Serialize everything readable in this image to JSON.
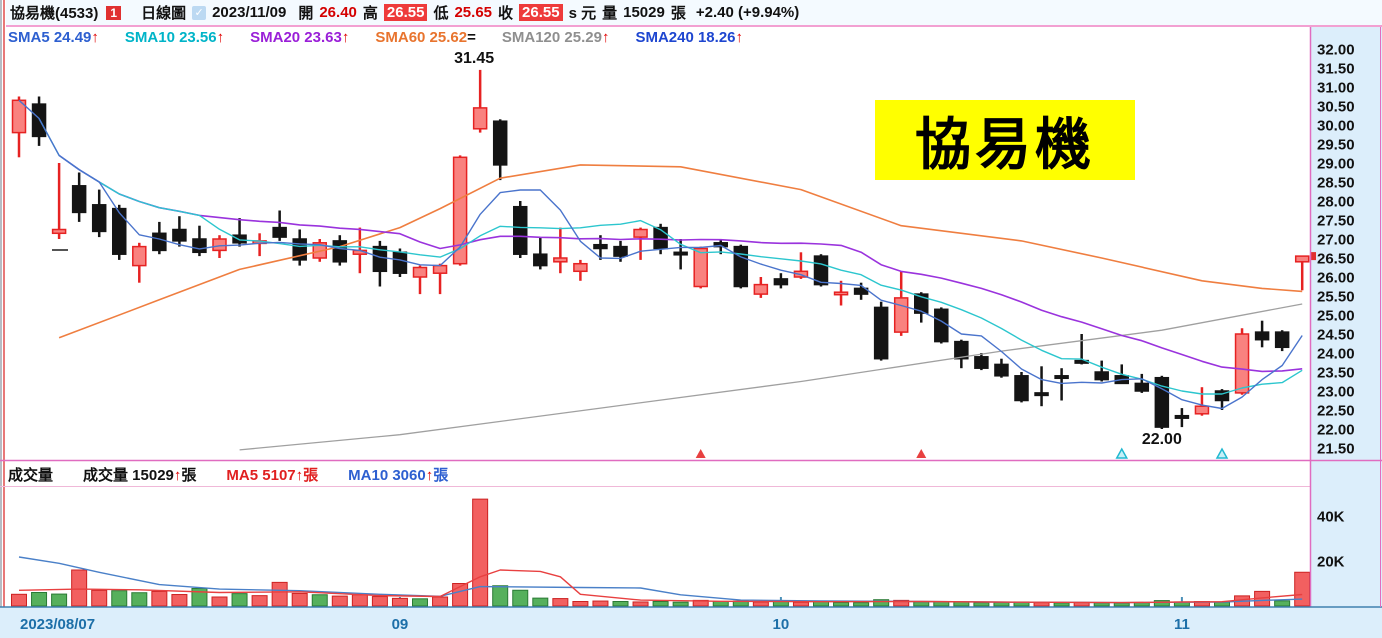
{
  "header": {
    "stock_name": "協易機(4533)",
    "badge": "1",
    "chart_type": "日線圖",
    "date": "2023/11/09",
    "open_label": "開",
    "open": "26.40",
    "high_label": "高",
    "high": "26.55",
    "low_label": "低",
    "low": "25.65",
    "close_label": "收",
    "close": "26.55",
    "unit": "s 元",
    "volume_label": "量",
    "volume": "15029",
    "volume_unit": "張",
    "change": "+2.40 (+9.94%)"
  },
  "sma_legend": [
    {
      "name": "SMA5",
      "value": "24.49",
      "dir": "↑",
      "color": "#2d5fd0",
      "dirColor": "#e00000"
    },
    {
      "name": "SMA10",
      "value": "23.56",
      "dir": "↑",
      "color": "#00b4c8",
      "dirColor": "#e00000"
    },
    {
      "name": "SMA20",
      "value": "23.63",
      "dir": "↑",
      "color": "#9a1fd8",
      "dirColor": "#e00000"
    },
    {
      "name": "SMA60",
      "value": "25.62",
      "dir": "=",
      "color": "#e8742e",
      "dirColor": "#111111"
    },
    {
      "name": "SMA120",
      "value": "25.29",
      "dir": "↑",
      "color": "#8f8f8f",
      "dirColor": "#e00000"
    },
    {
      "name": "SMA240",
      "value": "18.26",
      "dir": "↑",
      "color": "#1e46d0",
      "dirColor": "#e00000"
    }
  ],
  "volume_legend": {
    "pane_title": "成交量",
    "items": [
      {
        "pre": "成交量 15029",
        "dir": "↑",
        "post": "張",
        "color": "#111111",
        "dirColor": "#e00000"
      },
      {
        "pre": "MA5 5107",
        "dir": "↑",
        "post": "張",
        "color": "#e02020",
        "dirColor": "#e00000"
      },
      {
        "pre": "MA10 3060",
        "dir": "↑",
        "post": "張",
        "color": "#2d5fd0",
        "dirColor": "#e00000"
      }
    ]
  },
  "watermark": "協易機",
  "annotations": {
    "high_label": "31.45",
    "low_label": "22.00"
  },
  "chart_data": {
    "type": "candlestick+volume",
    "title": "協易機(4533) 日線圖",
    "price_axis_ticks": [
      "32.00",
      "31.50",
      "31.00",
      "30.50",
      "30.00",
      "29.50",
      "29.00",
      "28.50",
      "28.00",
      "27.50",
      "27.00",
      "26.50",
      "26.00",
      "25.50",
      "25.00",
      "24.50",
      "24.00",
      "23.50",
      "23.00",
      "22.50",
      "22.00",
      "21.50"
    ],
    "price_axis_range": {
      "min": 21.5,
      "max": 32.0,
      "step": 0.5
    },
    "volume_axis_ticks": [
      {
        "label": "40K",
        "value": 40
      },
      {
        "label": "20K",
        "value": 20
      }
    ],
    "x_axis": {
      "labels": [
        "2023/08/07",
        "09",
        "10",
        "11"
      ],
      "tick_indices": [
        1,
        19,
        38,
        58
      ]
    },
    "last_price_marker": 26.55,
    "grid": false,
    "candles_format": [
      "date",
      "open",
      "high",
      "low",
      "close",
      "volume_K",
      "volume_color"
    ],
    "candles": [
      [
        "08/07",
        29.8,
        30.75,
        29.15,
        30.65,
        5.2,
        "r"
      ],
      [
        "08/08",
        30.55,
        30.75,
        29.45,
        29.7,
        6.0,
        "g"
      ],
      [
        "08/09",
        27.15,
        29.0,
        27.0,
        27.25,
        5.3,
        "g"
      ],
      [
        "08/10",
        28.4,
        28.75,
        27.45,
        27.7,
        16.0,
        "r"
      ],
      [
        "08/11",
        27.9,
        28.3,
        27.05,
        27.2,
        7.0,
        "r"
      ],
      [
        "08/14",
        27.8,
        27.9,
        26.45,
        26.6,
        6.8,
        "g"
      ],
      [
        "08/15",
        26.3,
        26.9,
        25.85,
        26.8,
        5.9,
        "g"
      ],
      [
        "08/16",
        27.15,
        27.45,
        26.6,
        26.7,
        6.5,
        "r"
      ],
      [
        "08/17",
        27.25,
        27.6,
        26.8,
        26.95,
        5.1,
        "r"
      ],
      [
        "08/18",
        27.0,
        27.35,
        26.55,
        26.65,
        7.8,
        "g"
      ],
      [
        "08/21",
        26.7,
        27.1,
        26.5,
        27.0,
        4.0,
        "r"
      ],
      [
        "08/22",
        27.1,
        27.55,
        26.8,
        26.9,
        5.5,
        "g"
      ],
      [
        "08/23",
        26.9,
        27.15,
        26.55,
        26.95,
        4.6,
        "r"
      ],
      [
        "08/24",
        27.3,
        27.75,
        26.95,
        27.05,
        10.5,
        "r"
      ],
      [
        "08/25",
        27.0,
        27.25,
        26.3,
        26.45,
        5.6,
        "r"
      ],
      [
        "08/28",
        26.5,
        27.0,
        26.4,
        26.9,
        5.0,
        "g"
      ],
      [
        "08/29",
        26.95,
        27.1,
        26.3,
        26.4,
        4.4,
        "r"
      ],
      [
        "08/30",
        26.6,
        27.3,
        26.1,
        26.7,
        5.0,
        "r"
      ],
      [
        "08/31",
        26.8,
        26.95,
        25.75,
        26.15,
        4.2,
        "r"
      ],
      [
        "09/01",
        26.65,
        26.75,
        26.0,
        26.1,
        3.4,
        "r"
      ],
      [
        "09/05",
        26.0,
        26.3,
        25.55,
        26.25,
        3.2,
        "g"
      ],
      [
        "09/06",
        26.1,
        26.35,
        25.55,
        26.3,
        4.0,
        "r"
      ],
      [
        "09/07",
        26.35,
        29.2,
        26.3,
        29.15,
        10.0,
        "r"
      ],
      [
        "09/08",
        29.9,
        31.45,
        29.8,
        30.45,
        47.5,
        "r"
      ],
      [
        "09/11",
        30.1,
        30.15,
        28.55,
        28.95,
        9.0,
        "g"
      ],
      [
        "09/12",
        27.85,
        28.0,
        26.5,
        26.6,
        7.0,
        "g"
      ],
      [
        "09/13",
        26.6,
        27.05,
        26.2,
        26.3,
        3.5,
        "g"
      ],
      [
        "09/14",
        26.4,
        27.3,
        26.1,
        26.5,
        3.3,
        "r"
      ],
      [
        "09/15",
        26.15,
        26.45,
        25.9,
        26.35,
        2.0,
        "r"
      ],
      [
        "09/18",
        26.85,
        27.1,
        26.45,
        26.75,
        2.2,
        "r"
      ],
      [
        "09/19",
        26.8,
        26.95,
        26.4,
        26.55,
        2.0,
        "g"
      ],
      [
        "09/20",
        27.05,
        27.3,
        26.45,
        27.25,
        1.8,
        "r"
      ],
      [
        "09/21",
        27.3,
        27.4,
        26.6,
        26.75,
        2.0,
        "g"
      ],
      [
        "09/22",
        26.65,
        27.0,
        26.2,
        26.6,
        1.7,
        "g"
      ],
      [
        "09/25",
        25.75,
        26.8,
        25.7,
        26.75,
        2.5,
        "r"
      ],
      [
        "09/26",
        26.9,
        27.0,
        26.6,
        26.8,
        2.0,
        "g"
      ],
      [
        "09/27",
        26.8,
        26.85,
        25.7,
        25.75,
        2.2,
        "g"
      ],
      [
        "09/28",
        25.55,
        26.0,
        25.45,
        25.8,
        1.8,
        "r"
      ],
      [
        "10/02",
        25.95,
        26.1,
        25.7,
        25.8,
        2.0,
        "g"
      ],
      [
        "10/03",
        26.0,
        26.65,
        25.95,
        26.15,
        1.7,
        "r"
      ],
      [
        "10/04",
        26.55,
        26.6,
        25.75,
        25.8,
        2.1,
        "g"
      ],
      [
        "10/05",
        25.6,
        25.9,
        25.25,
        25.6,
        1.6,
        "g"
      ],
      [
        "10/06",
        25.7,
        25.85,
        25.4,
        25.55,
        1.5,
        "g"
      ],
      [
        "10/11",
        25.2,
        25.35,
        23.8,
        23.85,
        2.8,
        "g"
      ],
      [
        "10/12",
        24.55,
        26.15,
        24.45,
        25.45,
        2.5,
        "r"
      ],
      [
        "10/13",
        25.55,
        25.6,
        24.8,
        25.05,
        1.8,
        "g"
      ],
      [
        "10/16",
        25.15,
        25.2,
        24.25,
        24.3,
        2.0,
        "g"
      ],
      [
        "10/17",
        24.3,
        24.35,
        23.6,
        23.85,
        1.8,
        "g"
      ],
      [
        "10/18",
        23.9,
        24.0,
        23.55,
        23.6,
        1.5,
        "g"
      ],
      [
        "10/19",
        23.7,
        23.85,
        23.35,
        23.4,
        1.6,
        "g"
      ],
      [
        "10/20",
        23.4,
        23.5,
        22.7,
        22.75,
        1.8,
        "g"
      ],
      [
        "10/23",
        22.95,
        23.65,
        22.6,
        22.9,
        1.5,
        "r"
      ],
      [
        "10/24",
        23.4,
        23.6,
        22.75,
        23.35,
        1.4,
        "g"
      ],
      [
        "10/25",
        23.8,
        24.5,
        23.7,
        23.75,
        1.6,
        "r"
      ],
      [
        "10/26",
        23.5,
        23.8,
        23.25,
        23.3,
        1.4,
        "g"
      ],
      [
        "10/27",
        23.4,
        23.7,
        23.2,
        23.2,
        1.3,
        "g"
      ],
      [
        "10/30",
        23.2,
        23.45,
        22.95,
        23.0,
        1.5,
        "g"
      ],
      [
        "10/31",
        23.35,
        23.4,
        22.0,
        22.05,
        2.4,
        "g"
      ],
      [
        "11/01",
        22.35,
        22.55,
        22.05,
        22.3,
        1.8,
        "g"
      ],
      [
        "11/02",
        22.4,
        23.1,
        22.35,
        22.6,
        2.0,
        "r"
      ],
      [
        "11/03",
        23.0,
        23.05,
        22.5,
        22.75,
        1.7,
        "g"
      ],
      [
        "11/06",
        22.95,
        24.65,
        22.9,
        24.5,
        4.5,
        "r"
      ],
      [
        "11/07",
        24.55,
        24.85,
        24.15,
        24.35,
        6.5,
        "r"
      ],
      [
        "11/08",
        24.55,
        24.6,
        24.05,
        24.15,
        2.3,
        "g"
      ],
      [
        "11/09",
        26.4,
        26.55,
        25.65,
        26.55,
        15.0,
        "r"
      ]
    ],
    "overlays": {
      "sma60_points": [
        [
          2,
          24.4
        ],
        [
          7,
          25.4
        ],
        [
          11,
          26.2
        ],
        [
          16,
          26.8
        ],
        [
          19,
          27.3
        ],
        [
          21,
          27.8
        ],
        [
          24,
          28.6
        ],
        [
          28,
          28.95
        ],
        [
          33,
          28.9
        ],
        [
          39,
          28.3
        ],
        [
          44,
          27.35
        ],
        [
          50,
          26.95
        ],
        [
          54,
          26.5
        ],
        [
          59,
          25.9
        ],
        [
          62,
          25.7
        ],
        [
          64,
          25.62
        ]
      ],
      "sma120_points": [
        [
          11,
          21.45
        ],
        [
          19,
          21.85
        ],
        [
          29,
          22.55
        ],
        [
          39,
          23.25
        ],
        [
          49,
          24.05
        ],
        [
          57,
          24.6
        ],
        [
          64,
          25.29
        ]
      ],
      "vol_ma5_points": [
        [
          0,
          7.0
        ],
        [
          3,
          7.5
        ],
        [
          6,
          7.2
        ],
        [
          10,
          6.0
        ],
        [
          14,
          6.3
        ],
        [
          18,
          4.6
        ],
        [
          21,
          4.2
        ],
        [
          23,
          13.0
        ],
        [
          24,
          16.0
        ],
        [
          26,
          15.4
        ],
        [
          27,
          13.0
        ],
        [
          28,
          5.2
        ],
        [
          31,
          2.6
        ],
        [
          35,
          2.1
        ],
        [
          40,
          1.9
        ],
        [
          45,
          2.0
        ],
        [
          50,
          1.7
        ],
        [
          55,
          1.5
        ],
        [
          58,
          1.8
        ],
        [
          60,
          1.9
        ],
        [
          62,
          3.6
        ],
        [
          64,
          5.1
        ]
      ],
      "vol_ma10_points": [
        [
          0,
          21.8
        ],
        [
          2,
          19.0
        ],
        [
          4,
          15.0
        ],
        [
          7,
          9.5
        ],
        [
          10,
          7.5
        ],
        [
          14,
          6.8
        ],
        [
          18,
          5.2
        ],
        [
          21,
          4.3
        ],
        [
          23,
          8.6
        ],
        [
          28,
          8.2
        ],
        [
          31,
          8.0
        ],
        [
          33,
          5.0
        ],
        [
          36,
          2.6
        ],
        [
          40,
          2.2
        ],
        [
          45,
          2.0
        ],
        [
          50,
          1.7
        ],
        [
          55,
          1.5
        ],
        [
          58,
          1.7
        ],
        [
          60,
          1.8
        ],
        [
          62,
          2.5
        ],
        [
          64,
          3.06
        ]
      ]
    },
    "signal_markers": [
      {
        "index": 34,
        "style": "red-solid"
      },
      {
        "index": 45,
        "style": "red-solid"
      },
      {
        "index": 55,
        "style": "cyan-outline"
      },
      {
        "index": 60,
        "style": "cyan-outline"
      }
    ],
    "colors": {
      "up_fill": "#f9827f",
      "up_stroke": "#e62222",
      "down_fill": "#141414",
      "vol_up": "#f26060",
      "vol_up_stroke": "#cc2222",
      "vol_down": "#56b05c",
      "vol_down_stroke": "#2a7a34",
      "sma5": "#4a74cc",
      "sma10": "#2cc6ce",
      "sma20": "#9a33dd",
      "sma60": "#ef7e40",
      "sma120": "#a0a0a0",
      "vol_ma5": "#e84040",
      "vol_ma10": "#4a80c8",
      "axis_bg": "#dceefb",
      "axis_text": "#111111",
      "x_label": "#1d6fa8",
      "pane_border_pink": "#e06cc0",
      "pane_border_blue": "#4080b0"
    },
    "annotation_high": {
      "index": 23,
      "text": "31.45"
    },
    "annotation_low": {
      "index": 57,
      "text": "22.00"
    }
  }
}
